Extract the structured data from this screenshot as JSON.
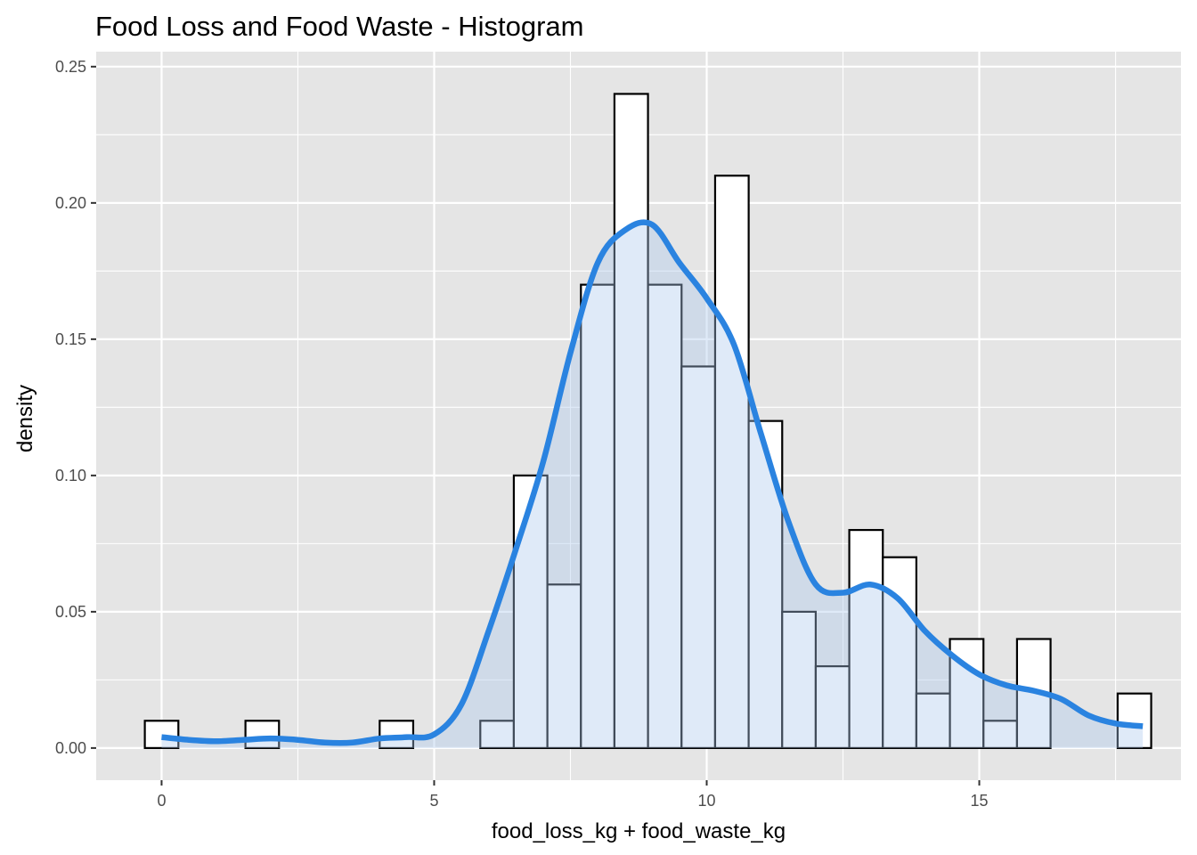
{
  "chart_data": {
    "type": "histogram",
    "title": "Food Loss and Food Waste - Histogram",
    "xlabel": "food_loss_kg + food_waste_kg",
    "ylabel": "density",
    "xlim": [
      -1.2,
      18.7
    ],
    "ylim": [
      -0.0118,
      0.2555
    ],
    "x_ticks": [
      0,
      5,
      10,
      15
    ],
    "x_tick_labels": [
      "0",
      "5",
      "10",
      "15"
    ],
    "y_ticks": [
      0,
      0.05,
      0.1,
      0.15,
      0.2,
      0.25
    ],
    "y_tick_labels": [
      "0.00",
      "0.05",
      "0.10",
      "0.15",
      "0.20",
      "0.25"
    ],
    "grid": true,
    "bin_width": 0.6154,
    "bin_centers": [
      0,
      0.615,
      1.231,
      1.846,
      2.462,
      3.077,
      3.692,
      4.308,
      4.923,
      5.538,
      6.154,
      6.769,
      7.385,
      8,
      8.615,
      9.231,
      9.846,
      10.462,
      11.077,
      11.692,
      12.308,
      12.923,
      13.538,
      14.154,
      14.769,
      15.385,
      16,
      16.615,
      17.231,
      17.846
    ],
    "density": [
      0.01,
      0,
      0,
      0.01,
      0,
      0,
      0,
      0.01,
      0,
      0,
      0.01,
      0.1,
      0.06,
      0.17,
      0.24,
      0.17,
      0.14,
      0.21,
      0.12,
      0.05,
      0.03,
      0.08,
      0.07,
      0.02,
      0.04,
      0.01,
      0.04,
      0,
      0,
      0.02
    ],
    "bar_fill": "#ffffff",
    "bar_stroke": "#000000",
    "density_curve": {
      "x": [
        0,
        0.5,
        1,
        1.5,
        2,
        2.5,
        3,
        3.5,
        4,
        4.5,
        5,
        5.5,
        6,
        6.5,
        7,
        7.5,
        8,
        8.5,
        9,
        9.5,
        10,
        10.5,
        11,
        11.5,
        12,
        12.5,
        13,
        13.5,
        14,
        14.5,
        15,
        15.5,
        16,
        16.5,
        17,
        17.5,
        18
      ],
      "y": [
        0.004,
        0.003,
        0.0025,
        0.003,
        0.0035,
        0.003,
        0.002,
        0.002,
        0.0035,
        0.004,
        0.005,
        0.016,
        0.043,
        0.073,
        0.105,
        0.145,
        0.178,
        0.19,
        0.192,
        0.178,
        0.165,
        0.148,
        0.115,
        0.083,
        0.06,
        0.057,
        0.06,
        0.055,
        0.043,
        0.034,
        0.027,
        0.023,
        0.021,
        0.018,
        0.012,
        0.009,
        0.008
      ],
      "line_color": "#2a83e0",
      "fill_color": "#aac8ed"
    },
    "panel_background": "#e5e5e5",
    "grid_color": "#ffffff"
  }
}
